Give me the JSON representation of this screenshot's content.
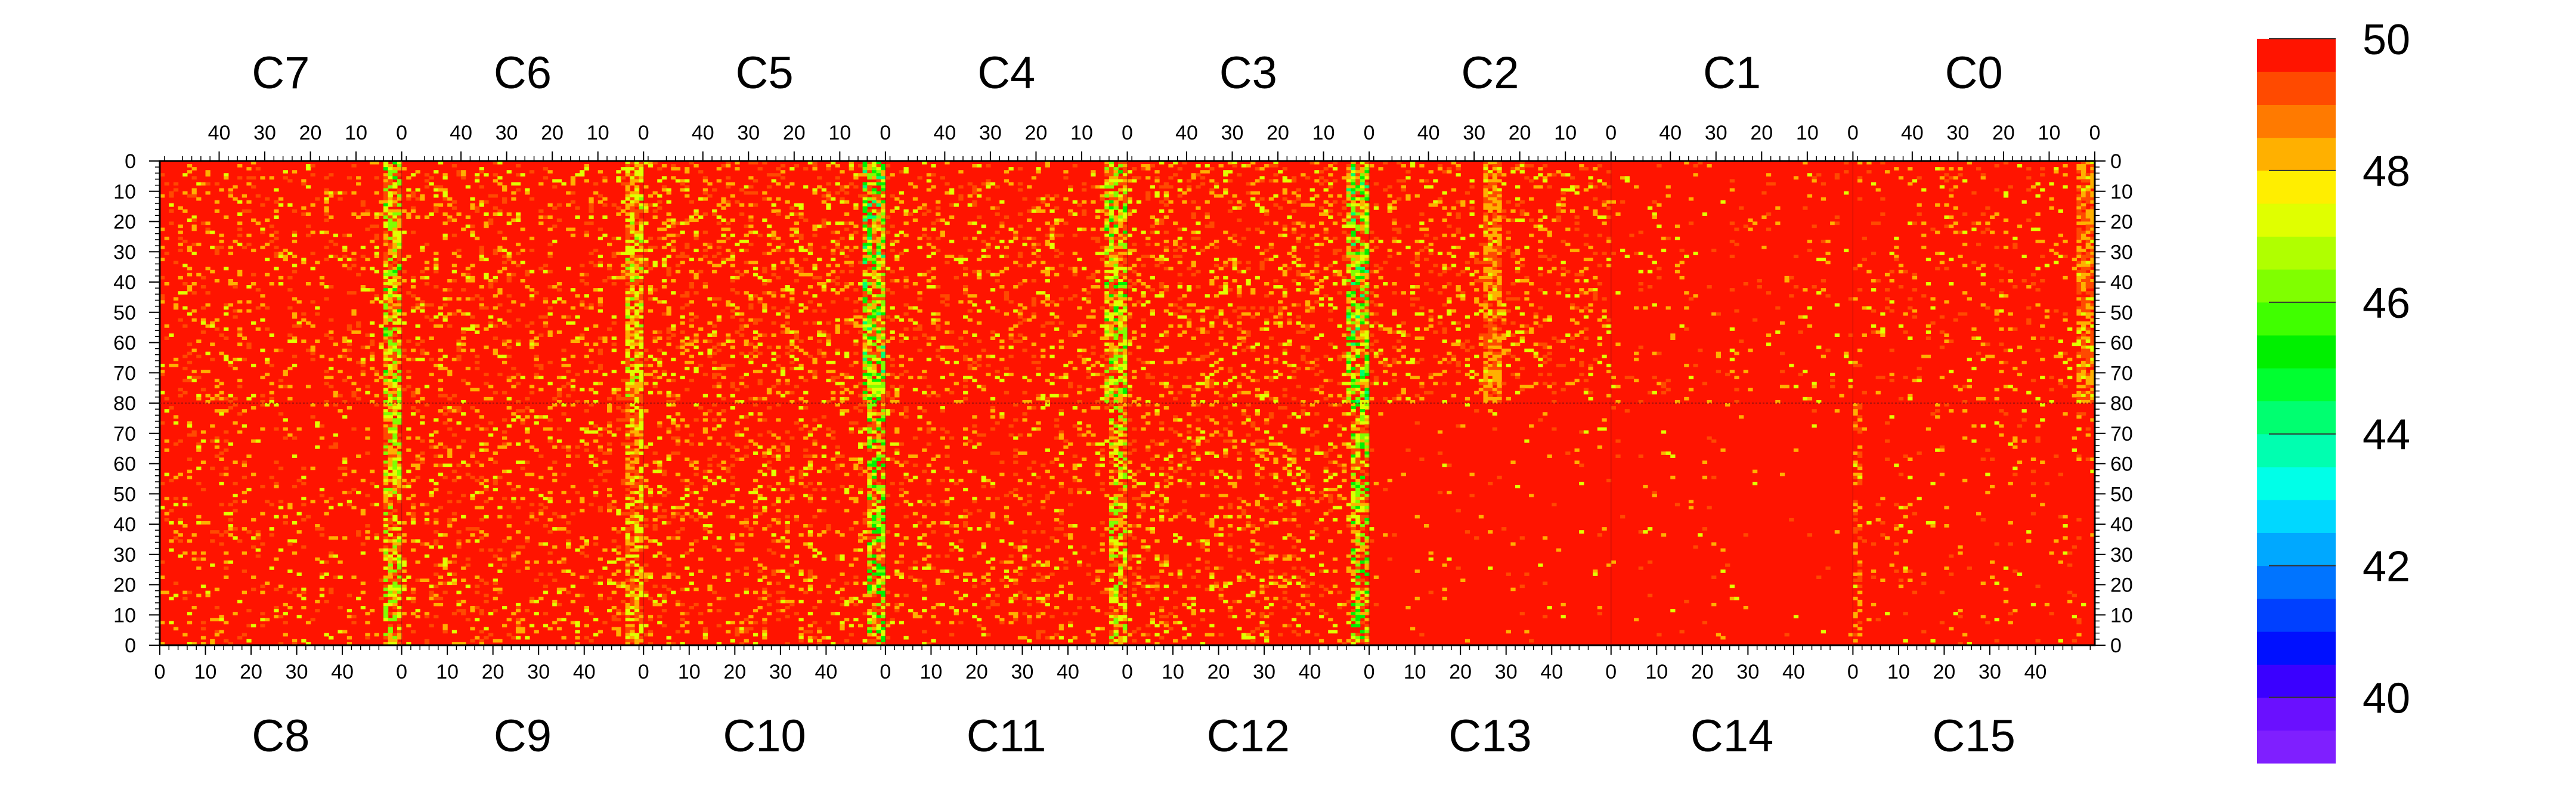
{
  "chart_data": {
    "type": "heatmap",
    "title": "",
    "top_channels": [
      "C7",
      "C6",
      "C5",
      "C4",
      "C3",
      "C2",
      "C1",
      "C0"
    ],
    "bottom_channels": [
      "C8",
      "C9",
      "C10",
      "C11",
      "C12",
      "C13",
      "C14",
      "C15"
    ],
    "top_axis_ticks": [
      40,
      30,
      20,
      10,
      0
    ],
    "bottom_axis_ticks": [
      0,
      10,
      20,
      30,
      40
    ],
    "channel_x_range": [
      0,
      53
    ],
    "left_axis_ticks": [
      0,
      10,
      20,
      30,
      40,
      50,
      60,
      70,
      80,
      70,
      60,
      50,
      40,
      30,
      20,
      10,
      0
    ],
    "right_axis_ticks": [
      0,
      10,
      20,
      30,
      40,
      50,
      60,
      70,
      80,
      70,
      60,
      50,
      40,
      30,
      20,
      10,
      0
    ],
    "rows_per_half": 80,
    "colorbar": {
      "range": [
        39,
        50
      ],
      "tick_labels": [
        40,
        42,
        44,
        46,
        48,
        50
      ],
      "colors": [
        "#7f1fff",
        "#6a10ff",
        "#3a00ff",
        "#0010ff",
        "#0040ff",
        "#0074ff",
        "#00a8ff",
        "#00d8ff",
        "#00ffe8",
        "#00ffb0",
        "#00ff70",
        "#00ff30",
        "#00f000",
        "#40ff00",
        "#80ff00",
        "#b0ff00",
        "#e0ff00",
        "#ffee00",
        "#ffb000",
        "#ff7a00",
        "#ff4a00",
        "#ff1400"
      ]
    },
    "value_description": "Values mostly 50 (red); reduced values (44-49) concentrated near channel boundaries at x=0 and x=53",
    "low_value_bands": [
      {
        "channel": "C7",
        "x_range": [
          0,
          3
        ],
        "typical_min": 46
      },
      {
        "channel": "C6",
        "x_range": [
          0,
          3
        ],
        "typical_min": 47
      },
      {
        "channel": "C5",
        "x_range": [
          0,
          4
        ],
        "typical_min": 45
      },
      {
        "channel": "C4",
        "x_range": [
          0,
          4
        ],
        "typical_min": 46
      },
      {
        "channel": "C3",
        "x_range": [
          0,
          4
        ],
        "typical_min": 45
      },
      {
        "channel": "C2",
        "x_range": [
          24,
          27
        ],
        "typical_min": 48
      },
      {
        "channel": "C0",
        "x_range": [
          0,
          3
        ],
        "typical_min": 48
      }
    ]
  }
}
